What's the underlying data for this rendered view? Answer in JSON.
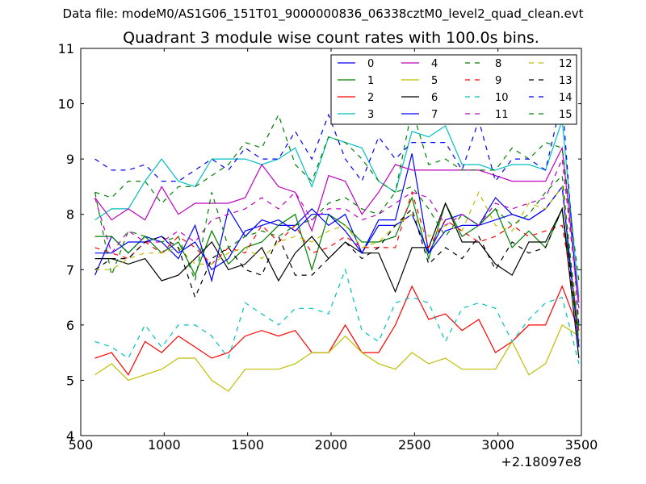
{
  "suptitle": "Data file: modeM0/AS1G06_151T01_9000000836_06338cztM0_level2_quad_clean.evt",
  "chart_data": {
    "type": "line",
    "title": "Quadrant 3 module wise count rates with 100.0s bins.",
    "xlabel": "",
    "ylabel": "",
    "x_offset_label": "+2.18097e8",
    "xlim": [
      500,
      3500
    ],
    "ylim": [
      4,
      11
    ],
    "xticks": [
      500,
      1000,
      1500,
      2000,
      2500,
      3000,
      3500
    ],
    "xtick_labels": [
      "500",
      "1000",
      "1500",
      "2000",
      "2500",
      "3000",
      "3500"
    ],
    "yticks": [
      4,
      5,
      6,
      7,
      8,
      9,
      10,
      11
    ],
    "ytick_labels": [
      "4",
      "5",
      "6",
      "7",
      "8",
      "9",
      "10",
      "11"
    ],
    "legend_position": "top-right",
    "x": [
      585,
      685,
      785,
      885,
      985,
      1085,
      1185,
      1285,
      1385,
      1485,
      1585,
      1685,
      1785,
      1885,
      1985,
      2085,
      2185,
      2285,
      2385,
      2485,
      2585,
      2685,
      2785,
      2885,
      2985,
      3085,
      3185,
      3285,
      3385,
      3485
    ],
    "series": [
      {
        "name": "0",
        "color": "#0000ff",
        "dash": "solid",
        "values": [
          6.9,
          7.6,
          7.3,
          7.6,
          7.5,
          7.2,
          7.8,
          6.8,
          8.1,
          7.6,
          7.9,
          7.8,
          7.8,
          8.1,
          7.8,
          8.0,
          7.3,
          7.9,
          7.9,
          9.1,
          7.3,
          7.9,
          8.0,
          7.8,
          8.3,
          8.0,
          7.9,
          8.1,
          8.5,
          5.6
        ]
      },
      {
        "name": "1",
        "color": "#008000",
        "dash": "solid",
        "values": [
          7.6,
          7.6,
          7.3,
          7.6,
          7.3,
          7.5,
          6.9,
          7.7,
          7.1,
          7.4,
          7.5,
          7.8,
          8.0,
          7.0,
          8.0,
          7.8,
          7.5,
          7.5,
          7.6,
          8.3,
          7.2,
          8.2,
          7.6,
          7.8,
          8.1,
          7.4,
          7.7,
          7.4,
          8.1,
          5.9
        ]
      },
      {
        "name": "2",
        "color": "#ff0000",
        "dash": "solid",
        "values": [
          5.4,
          5.5,
          5.1,
          5.7,
          5.5,
          5.8,
          5.6,
          5.4,
          5.5,
          5.8,
          5.9,
          5.8,
          5.9,
          5.5,
          5.5,
          6.0,
          5.5,
          5.5,
          6.0,
          6.7,
          6.1,
          6.2,
          5.9,
          6.1,
          5.5,
          5.7,
          6.0,
          6.0,
          6.7,
          5.9
        ]
      },
      {
        "name": "3",
        "color": "#00bfbf",
        "dash": "solid",
        "values": [
          7.9,
          8.1,
          8.1,
          8.6,
          9.0,
          8.6,
          8.5,
          9.0,
          9.0,
          9.0,
          8.9,
          9.0,
          9.2,
          8.5,
          9.4,
          9.3,
          9.2,
          8.6,
          8.4,
          9.5,
          9.4,
          9.6,
          8.9,
          8.9,
          8.8,
          8.9,
          8.9,
          8.8,
          9.7,
          6.5
        ]
      },
      {
        "name": "4",
        "color": "#bf00bf",
        "dash": "solid",
        "values": [
          8.3,
          7.9,
          8.1,
          7.9,
          8.5,
          8.0,
          8.2,
          8.2,
          8.2,
          8.3,
          8.9,
          8.5,
          8.4,
          7.7,
          8.7,
          8.6,
          8.0,
          8.4,
          8.9,
          8.8,
          8.8,
          8.8,
          8.8,
          8.8,
          8.7,
          8.6,
          8.6,
          8.6,
          9.2,
          6.4
        ]
      },
      {
        "name": "5",
        "color": "#bfbf00",
        "dash": "solid",
        "values": [
          5.1,
          5.3,
          5.0,
          5.1,
          5.2,
          5.4,
          5.4,
          5.0,
          4.8,
          5.2,
          5.2,
          5.2,
          5.3,
          5.5,
          5.5,
          5.8,
          5.5,
          5.3,
          5.2,
          5.5,
          5.3,
          5.4,
          5.2,
          5.2,
          5.2,
          5.7,
          5.1,
          5.3,
          6.0,
          5.8
        ]
      },
      {
        "name": "6",
        "color": "#000000",
        "dash": "solid",
        "values": [
          7.2,
          7.2,
          7.1,
          7.2,
          6.8,
          6.9,
          7.2,
          7.5,
          7.0,
          7.1,
          7.4,
          6.8,
          7.3,
          7.6,
          7.2,
          7.5,
          7.3,
          7.3,
          6.6,
          7.4,
          7.4,
          8.2,
          7.5,
          7.5,
          7.1,
          6.9,
          7.5,
          7.5,
          8.1,
          5.4
        ]
      },
      {
        "name": "7",
        "color": "#0000ff",
        "dash": "solid",
        "values": [
          7.3,
          7.3,
          7.5,
          7.5,
          7.6,
          7.3,
          7.5,
          7.0,
          7.2,
          7.7,
          7.8,
          7.9,
          7.7,
          8.0,
          8.0,
          7.7,
          7.3,
          7.8,
          7.8,
          8.0,
          7.3,
          7.7,
          7.8,
          7.8,
          7.9,
          8.0,
          7.9,
          8.1,
          8.5,
          5.6
        ]
      },
      {
        "name": "8",
        "color": "#008000",
        "dash": "dashed",
        "values": [
          8.4,
          8.3,
          8.6,
          8.6,
          8.2,
          8.5,
          8.5,
          8.7,
          8.9,
          9.3,
          9.2,
          9.8,
          8.9,
          8.6,
          9.4,
          9.3,
          9.0,
          8.6,
          8.4,
          9.9,
          8.9,
          9.0,
          8.8,
          8.8,
          8.8,
          9.2,
          9.0,
          9.3,
          9.2,
          6.8
        ]
      },
      {
        "name": "9",
        "color": "#ff0000",
        "dash": "dashed",
        "values": [
          7.4,
          7.3,
          7.2,
          7.5,
          7.3,
          7.6,
          7.4,
          7.1,
          7.4,
          7.3,
          7.8,
          7.5,
          7.8,
          7.3,
          7.4,
          7.6,
          7.4,
          7.4,
          7.4,
          8.4,
          7.4,
          7.9,
          7.7,
          7.5,
          7.6,
          7.8,
          7.6,
          7.7,
          7.8,
          6.0
        ]
      },
      {
        "name": "10",
        "color": "#00bfbf",
        "dash": "dashed",
        "values": [
          5.7,
          5.6,
          5.4,
          6.0,
          5.6,
          6.0,
          6.0,
          5.8,
          5.4,
          6.4,
          6.2,
          6.0,
          6.3,
          6.3,
          6.2,
          7.0,
          5.9,
          5.7,
          6.4,
          6.5,
          6.4,
          5.7,
          6.3,
          6.4,
          6.3,
          5.7,
          6.1,
          6.4,
          6.5,
          5.3
        ]
      },
      {
        "name": "11",
        "color": "#bf00bf",
        "dash": "dashed",
        "values": [
          8.3,
          7.3,
          7.7,
          7.5,
          7.5,
          7.7,
          7.5,
          7.9,
          8.0,
          8.1,
          8.3,
          8.1,
          8.4,
          7.9,
          8.1,
          8.1,
          7.9,
          8.0,
          8.2,
          8.4,
          8.3,
          7.8,
          8.0,
          7.8,
          8.2,
          8.1,
          8.2,
          8.3,
          9.0,
          6.3
        ]
      },
      {
        "name": "12",
        "color": "#bfbf00",
        "dash": "dashed",
        "values": [
          7.0,
          7.0,
          7.2,
          7.3,
          7.3,
          7.4,
          7.1,
          7.1,
          7.3,
          7.4,
          7.2,
          7.5,
          7.6,
          7.5,
          7.7,
          7.8,
          7.4,
          7.5,
          7.8,
          8.0,
          7.6,
          7.8,
          7.7,
          8.4,
          7.8,
          7.7,
          8.2,
          8.1,
          8.5,
          6.0
        ]
      },
      {
        "name": "13",
        "color": "#000000",
        "dash": "dashed",
        "values": [
          7.0,
          7.2,
          7.2,
          7.5,
          7.6,
          7.4,
          6.5,
          7.2,
          7.4,
          7.0,
          6.9,
          7.6,
          6.9,
          6.9,
          7.2,
          7.5,
          7.2,
          7.4,
          7.8,
          8.1,
          7.1,
          7.4,
          7.2,
          7.6,
          7.0,
          7.5,
          7.3,
          7.4,
          8.1,
          5.7
        ]
      },
      {
        "name": "14",
        "color": "#0000ff",
        "dash": "dashed",
        "values": [
          9.0,
          8.8,
          8.8,
          8.9,
          8.6,
          8.6,
          8.8,
          9.0,
          8.8,
          9.2,
          9.0,
          9.0,
          9.5,
          9.0,
          9.8,
          9.0,
          8.6,
          9.4,
          9.0,
          9.3,
          9.3,
          9.3,
          8.8,
          9.7,
          8.6,
          9.0,
          9.0,
          8.8,
          10.1,
          6.0
        ]
      },
      {
        "name": "15",
        "color": "#008000",
        "dash": "dashed",
        "values": [
          8.4,
          6.9,
          7.7,
          7.6,
          7.5,
          7.6,
          6.8,
          8.4,
          7.4,
          7.6,
          7.7,
          7.6,
          7.8,
          7.9,
          8.2,
          8.3,
          8.1,
          8.0,
          8.4,
          8.5,
          8.1,
          7.6,
          8.0,
          7.8,
          8.1,
          7.8,
          8.0,
          8.4,
          8.7,
          5.7
        ]
      }
    ]
  }
}
